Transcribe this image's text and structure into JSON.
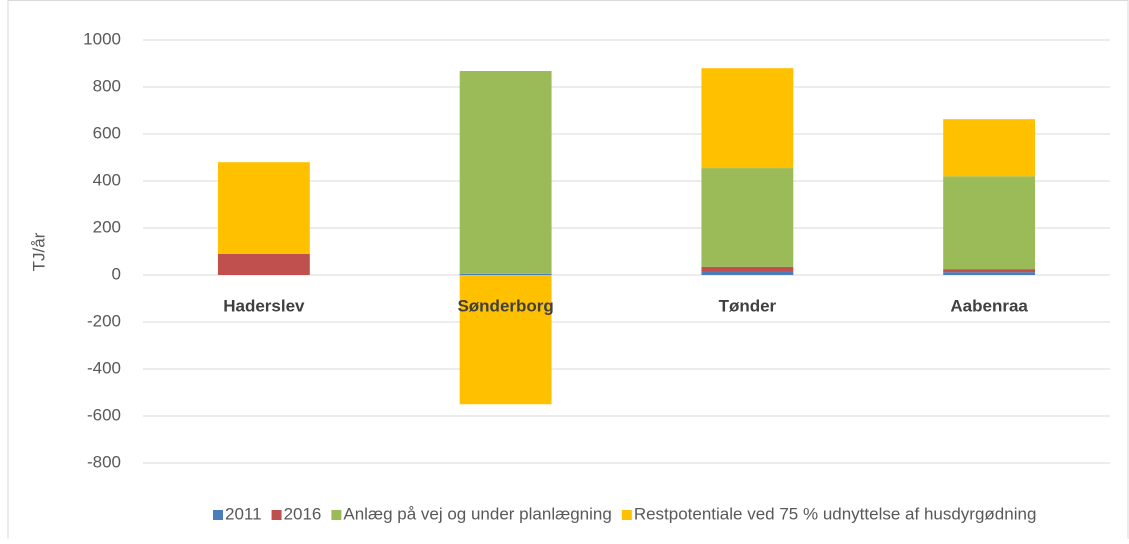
{
  "chart_data": {
    "type": "stacked_bar",
    "ylabel": "TJ/år",
    "categories": [
      "Haderslev",
      "Sønderborg",
      "Tønder",
      "Aabenraa"
    ],
    "series": [
      {
        "name": "2011",
        "color": "#4a7ebb",
        "values": [
          0,
          5,
          15,
          12
        ]
      },
      {
        "name": "2016",
        "color": "#c0504d",
        "values": [
          90,
          0,
          20,
          13
        ]
      },
      {
        "name": "Anlæg på vej og under planlægning",
        "color": "#9bbb59",
        "values": [
          0,
          863,
          420,
          395
        ]
      },
      {
        "name": "Restpotentiale ved 75 % udnyttelse af husdyrgødning",
        "color": "#ffc000",
        "values": [
          390,
          -550,
          425,
          243
        ]
      }
    ],
    "ylim": [
      -800,
      1000
    ],
    "yticks": [
      -800,
      -600,
      -400,
      -200,
      0,
      200,
      400,
      600,
      800,
      1000
    ],
    "grid": true,
    "legend": "bottom"
  }
}
